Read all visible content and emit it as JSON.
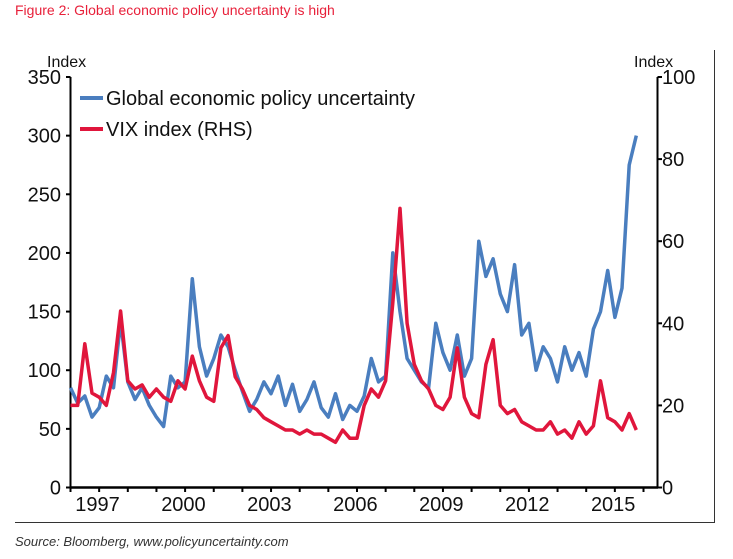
{
  "figure": {
    "title": "Figure 2: Global economic policy uncertainty is high",
    "source": "Source: Bloomberg, www.policyuncertainty.com"
  },
  "chart_data": {
    "type": "line",
    "title": "Figure 2: Global economic policy uncertainty is high",
    "xlabel": "",
    "ylabel": "Index",
    "ylabel_right": "Index",
    "xlim": [
      1997,
      2017.5
    ],
    "ylim": [
      0,
      350
    ],
    "ylim_right": [
      0,
      100
    ],
    "x_ticks": [
      "1997",
      "2000",
      "2003",
      "2006",
      "2009",
      "2012",
      "2015"
    ],
    "y_ticks": [
      "0",
      "50",
      "100",
      "150",
      "200",
      "250",
      "300",
      "350"
    ],
    "y_ticks_right": [
      "0",
      "20",
      "40",
      "60",
      "80",
      "100"
    ],
    "grid": false,
    "legend": "top-left",
    "legend_entries": [
      "Global economic policy uncertainty",
      "VIX index (RHS)"
    ],
    "series": [
      {
        "name": "Global economic policy uncertainty",
        "axis": "left",
        "color": "#4a7ebf",
        "x": [
          1997.0,
          1997.25,
          1997.5,
          1997.75,
          1998.0,
          1998.25,
          1998.5,
          1998.75,
          1999.0,
          1999.25,
          1999.5,
          1999.75,
          2000.0,
          2000.25,
          2000.5,
          2000.75,
          2001.0,
          2001.25,
          2001.5,
          2001.75,
          2002.0,
          2002.25,
          2002.5,
          2002.75,
          2003.0,
          2003.25,
          2003.5,
          2003.75,
          2004.0,
          2004.25,
          2004.5,
          2004.75,
          2005.0,
          2005.25,
          2005.5,
          2005.75,
          2006.0,
          2006.25,
          2006.5,
          2006.75,
          2007.0,
          2007.25,
          2007.5,
          2007.75,
          2008.0,
          2008.25,
          2008.5,
          2008.75,
          2009.0,
          2009.25,
          2009.5,
          2009.75,
          2010.0,
          2010.25,
          2010.5,
          2010.75,
          2011.0,
          2011.25,
          2011.5,
          2011.75,
          2012.0,
          2012.25,
          2012.5,
          2012.75,
          2013.0,
          2013.25,
          2013.5,
          2013.75,
          2014.0,
          2014.25,
          2014.5,
          2014.75,
          2015.0,
          2015.25,
          2015.5,
          2015.75,
          2016.0,
          2016.25,
          2016.5,
          2016.75
        ],
        "values": [
          85,
          72,
          78,
          60,
          68,
          95,
          85,
          142,
          90,
          75,
          85,
          70,
          60,
          52,
          95,
          85,
          90,
          178,
          120,
          95,
          110,
          130,
          120,
          100,
          82,
          65,
          75,
          90,
          80,
          95,
          70,
          88,
          65,
          75,
          90,
          68,
          60,
          80,
          58,
          70,
          65,
          78,
          110,
          90,
          95,
          200,
          150,
          110,
          100,
          90,
          85,
          140,
          115,
          100,
          130,
          95,
          110,
          210,
          180,
          195,
          165,
          150,
          190,
          130,
          140,
          100,
          120,
          110,
          90,
          120,
          100,
          115,
          95,
          135,
          150,
          185,
          145,
          170,
          275,
          300
        ]
      },
      {
        "name": "VIX index (RHS)",
        "axis": "right",
        "color": "#e0163c",
        "x": [
          1997.0,
          1997.25,
          1997.5,
          1997.75,
          1998.0,
          1998.25,
          1998.5,
          1998.75,
          1999.0,
          1999.25,
          1999.5,
          1999.75,
          2000.0,
          2000.25,
          2000.5,
          2000.75,
          2001.0,
          2001.25,
          2001.5,
          2001.75,
          2002.0,
          2002.25,
          2002.5,
          2002.75,
          2003.0,
          2003.25,
          2003.5,
          2003.75,
          2004.0,
          2004.25,
          2004.5,
          2004.75,
          2005.0,
          2005.25,
          2005.5,
          2005.75,
          2006.0,
          2006.25,
          2006.5,
          2006.75,
          2007.0,
          2007.25,
          2007.5,
          2007.75,
          2008.0,
          2008.25,
          2008.5,
          2008.75,
          2009.0,
          2009.25,
          2009.5,
          2009.75,
          2010.0,
          2010.25,
          2010.5,
          2010.75,
          2011.0,
          2011.25,
          2011.5,
          2011.75,
          2012.0,
          2012.25,
          2012.5,
          2012.75,
          2013.0,
          2013.25,
          2013.5,
          2013.75,
          2014.0,
          2014.25,
          2014.5,
          2014.75,
          2015.0,
          2015.25,
          2015.5,
          2015.75,
          2016.0,
          2016.25,
          2016.5,
          2016.75
        ],
        "values": [
          20,
          20,
          35,
          23,
          22,
          20,
          28,
          43,
          26,
          24,
          25,
          22,
          24,
          22,
          21,
          26,
          24,
          32,
          26,
          22,
          21,
          34,
          37,
          27,
          24,
          20,
          19,
          17,
          16,
          15,
          14,
          14,
          13,
          14,
          13,
          13,
          12,
          11,
          14,
          12,
          12,
          20,
          24,
          22,
          26,
          45,
          68,
          40,
          30,
          26,
          24,
          20,
          19,
          22,
          34,
          22,
          18,
          17,
          30,
          36,
          20,
          18,
          19,
          16,
          15,
          14,
          14,
          16,
          13,
          14,
          12,
          16,
          13,
          15,
          26,
          17,
          16,
          14,
          18,
          14
        ]
      }
    ]
  }
}
